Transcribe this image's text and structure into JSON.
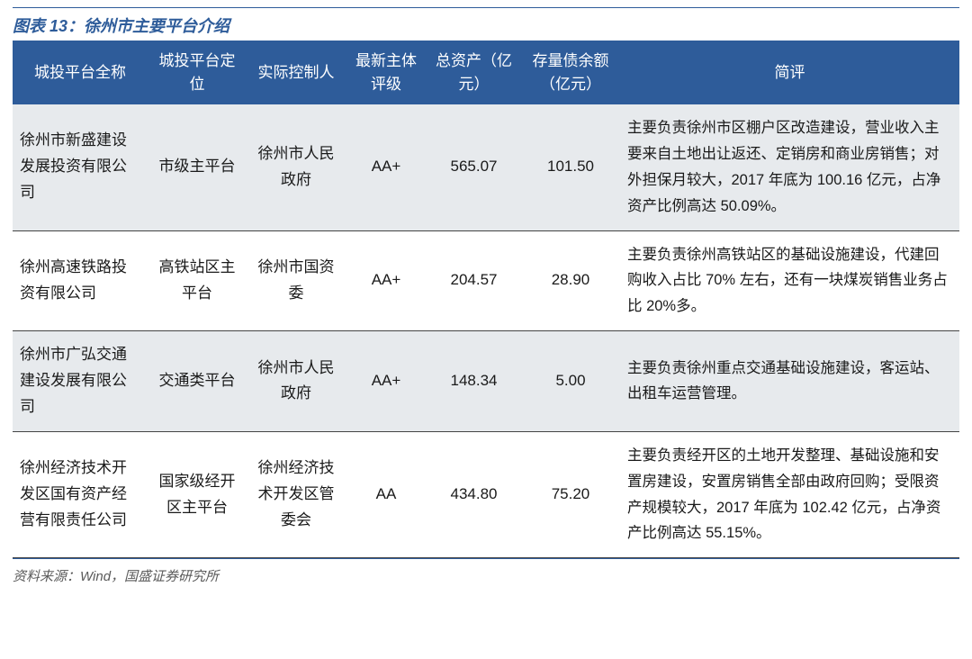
{
  "title": "图表 13：徐州市主要平台介绍",
  "source": "资料来源：Wind，国盛证券研究所",
  "header_bg": "#2e5c9a",
  "header_fg": "#ffffff",
  "row_odd_bg": "#e7eaed",
  "row_even_bg": "#ffffff",
  "columns": [
    "城投平台全称",
    "城投平台定位",
    "实际控制人",
    "最新主体评级",
    "总资产（亿元）",
    "存量债余额（亿元）",
    "简评"
  ],
  "rows": [
    {
      "name": "徐州市新盛建设发展投资有限公司",
      "position": "市级主平台",
      "controller": "徐州市人民政府",
      "rating": "AA+",
      "assets": "565.07",
      "debt": "101.50",
      "comment": "主要负责徐州市区棚户区改造建设，营业收入主要来自土地出让返还、定销房和商业房销售；对外担保月较大，2017 年底为 100.16 亿元，占净资产比例高达 50.09%。"
    },
    {
      "name": "徐州高速铁路投资有限公司",
      "position": "高铁站区主平台",
      "controller": "徐州市国资委",
      "rating": "AA+",
      "assets": "204.57",
      "debt": "28.90",
      "comment": "主要负责徐州高铁站区的基础设施建设，代建回购收入占比 70% 左右，还有一块煤炭销售业务占比 20%多。"
    },
    {
      "name": "徐州市广弘交通建设发展有限公司",
      "position": "交通类平台",
      "controller": "徐州市人民政府",
      "rating": "AA+",
      "assets": "148.34",
      "debt": "5.00",
      "comment": "主要负责徐州重点交通基础设施建设，客运站、出租车运营管理。"
    },
    {
      "name": "徐州经济技术开发区国有资产经营有限责任公司",
      "position": "国家级经开区主平台",
      "controller": "徐州经济技术开发区管委会",
      "rating": "AA",
      "assets": "434.80",
      "debt": "75.20",
      "comment": "主要负责经开区的土地开发整理、基础设施和安置房建设，安置房销售全部由政府回购；受限资产规模较大，2017 年底为 102.42 亿元，占净资产比例高达 55.15%。"
    }
  ]
}
